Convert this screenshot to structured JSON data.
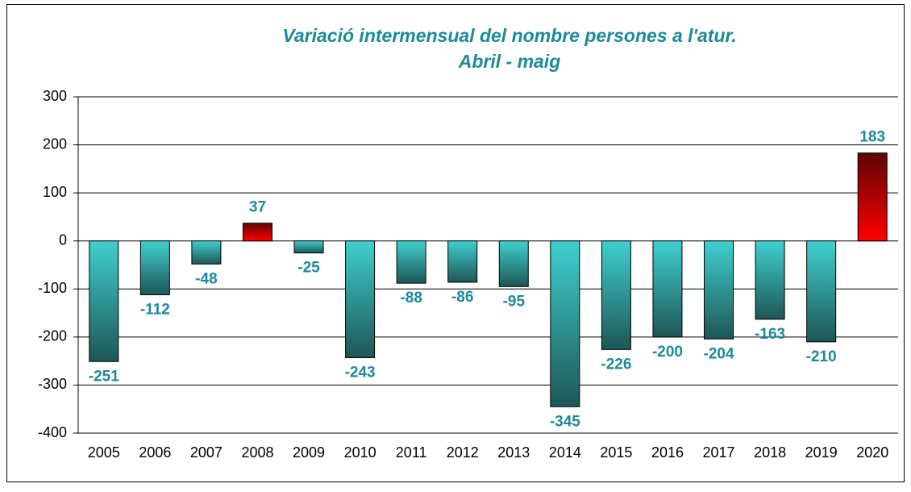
{
  "chart_data": {
    "type": "bar",
    "title": "Variació intermensual del nombre persones a l'atur.",
    "subtitle": "Abril - maig",
    "categories": [
      "2005",
      "2006",
      "2007",
      "2008",
      "2009",
      "2010",
      "2011",
      "2012",
      "2013",
      "2014",
      "2015",
      "2016",
      "2017",
      "2018",
      "2019",
      "2020"
    ],
    "values": [
      -251,
      -112,
      -48,
      37,
      -25,
      -243,
      -88,
      -86,
      -95,
      -345,
      -226,
      -200,
      -204,
      -163,
      -210,
      183
    ],
    "colors": {
      "negative": [
        "#3fd0cf",
        "#1e5656"
      ],
      "positive": [
        "#5e0505",
        "#ff0000"
      ],
      "label": "#1b8a9b"
    },
    "ylim": [
      -400,
      300
    ],
    "yticks": [
      -400,
      -300,
      -200,
      -100,
      0,
      100,
      200,
      300
    ],
    "grid": true
  }
}
